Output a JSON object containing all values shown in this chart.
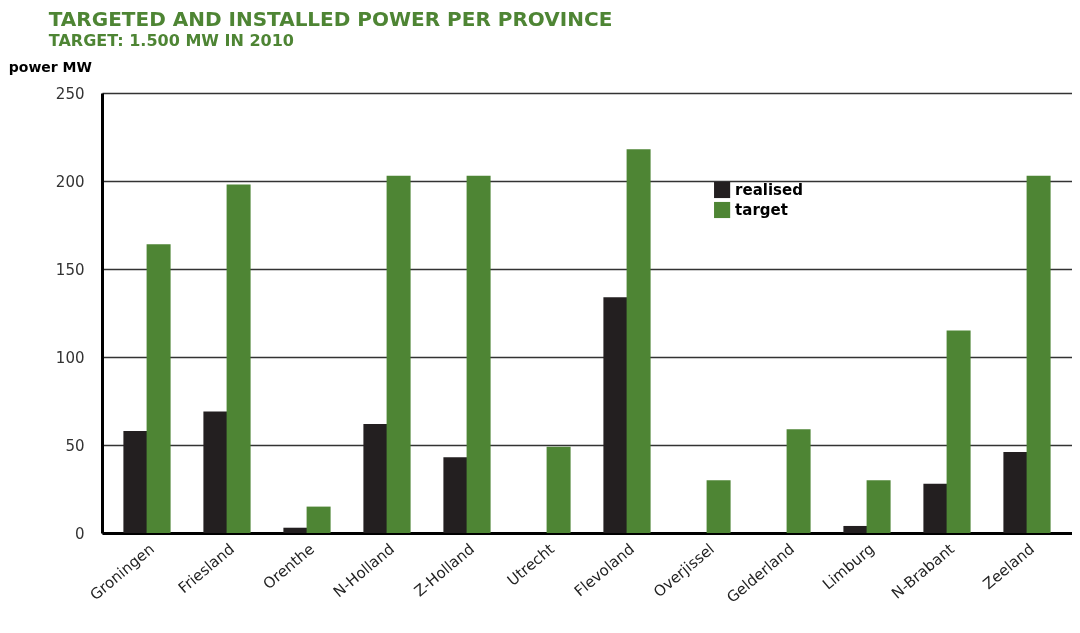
{
  "chart_data": {
    "type": "bar",
    "title": "TARGETED AND INSTALLED POWER PER PROVINCE",
    "subtitle": "TARGET: 1.500 MW IN 2010",
    "ylabel": "power MW",
    "categories": [
      "Groningen",
      "Friesland",
      "Orenthe",
      "N-Holland",
      "Z-Holland",
      "Utrecht",
      "Flevoland",
      "Overjissel",
      "Gelderland",
      "Limburg",
      "N-Brabant",
      "Zeeland"
    ],
    "series": [
      {
        "name": "realised",
        "color": "#231f20",
        "values": [
          58,
          69,
          3,
          62,
          43,
          null,
          134,
          null,
          null,
          4,
          28,
          46
        ]
      },
      {
        "name": "target",
        "color": "#4e8534",
        "values": [
          164,
          198,
          15,
          203,
          203,
          49,
          218,
          30,
          59,
          30,
          115,
          203
        ]
      }
    ],
    "ylim": [
      0,
      250
    ],
    "yticks": [
      0,
      50,
      100,
      150,
      200,
      250
    ],
    "grid": "y",
    "legend": "top right"
  }
}
